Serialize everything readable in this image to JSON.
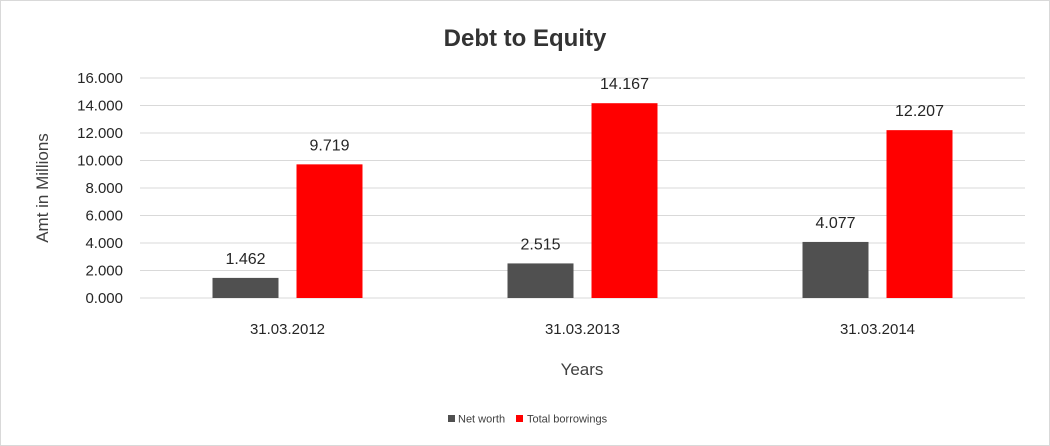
{
  "chart_data": {
    "type": "bar",
    "title": "Debt to Equity",
    "xlabel": "Years",
    "ylabel": "Amt in Millions",
    "categories": [
      "31.03.2012",
      "31.03.2013",
      "31.03.2014"
    ],
    "series": [
      {
        "name": "Net worth",
        "values": [
          1.462,
          2.515,
          4.077
        ],
        "color": "#505050"
      },
      {
        "name": "Total borrowings",
        "values": [
          9.719,
          14.167,
          12.207
        ],
        "color": "#ff0000"
      }
    ],
    "ylim": [
      0,
      16
    ],
    "yticks": [
      "0.000",
      "2.000",
      "4.000",
      "6.000",
      "8.000",
      "10.000",
      "12.000",
      "14.000",
      "16.000"
    ],
    "data_labels": [
      [
        "1.462",
        "2.515",
        "4.077"
      ],
      [
        "9.719",
        "14.167",
        "12.207"
      ]
    ],
    "grid": true,
    "legend_position": "bottom"
  }
}
